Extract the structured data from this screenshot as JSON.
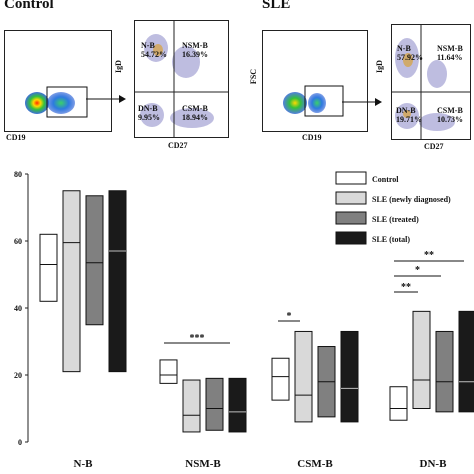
{
  "flow": {
    "control": {
      "title": "Control",
      "scatter_xlabel": "CD19",
      "quad_xlabel": "CD27",
      "quad_ylabel": "IgD",
      "nb": {
        "name": "N-B",
        "pct": "54.72%"
      },
      "nsmb": {
        "name": "NSM-B",
        "pct": "16.39%"
      },
      "dnb": {
        "name": "DN-B",
        "pct": "9.95%"
      },
      "csmb": {
        "name": "CSM-B",
        "pct": "18.94%"
      }
    },
    "sle": {
      "title": "SLE",
      "scatter_xlabel": "CD19",
      "scatter_ylabel": "FSC",
      "quad_xlabel": "CD27",
      "quad_ylabel": "IgD",
      "nb": {
        "name": "N-B",
        "pct": "57.92%"
      },
      "nsmb": {
        "name": "NSM-B",
        "pct": "11.64%"
      },
      "dnb": {
        "name": "DN-B",
        "pct": "19.71%"
      },
      "csmb": {
        "name": "CSM-B",
        "pct": "10.73%"
      }
    }
  },
  "chart_data": {
    "type": "box",
    "categories": [
      "N-B",
      "NSM-B",
      "CSM-B",
      "DN-B"
    ],
    "ylim": [
      0,
      80
    ],
    "yticks": [
      "0",
      "20",
      "40",
      "60",
      "80"
    ],
    "series": [
      {
        "name": "Control",
        "color": "#ffffff",
        "boxes": [
          {
            "low": 42,
            "median": 53,
            "high": 62
          },
          {
            "low": 17.5,
            "median": 20,
            "high": 24.5
          },
          {
            "low": 12.5,
            "median": 19.5,
            "high": 25
          },
          {
            "low": 6.5,
            "median": 10,
            "high": 16.5
          }
        ]
      },
      {
        "name": "SLE (newly diagnosed)",
        "color": "#d9d9d9",
        "boxes": [
          {
            "low": 21,
            "median": 59.5,
            "high": 75
          },
          {
            "low": 3,
            "median": 8,
            "high": 18.5
          },
          {
            "low": 6,
            "median": 14,
            "high": 33
          },
          {
            "low": 10,
            "median": 18.5,
            "high": 39
          }
        ]
      },
      {
        "name": "SLE (treated)",
        "color": "#808080",
        "boxes": [
          {
            "low": 35,
            "median": 53.5,
            "high": 73.5
          },
          {
            "low": 3.5,
            "median": 10,
            "high": 19
          },
          {
            "low": 7.5,
            "median": 18,
            "high": 28.5
          },
          {
            "low": 9,
            "median": 18,
            "high": 33
          }
        ]
      },
      {
        "name": "SLE (total)",
        "color": "#1a1a1a",
        "boxes": [
          {
            "low": 21,
            "median": 57,
            "high": 75
          },
          {
            "low": 3,
            "median": 9,
            "high": 19
          },
          {
            "low": 6,
            "median": 16,
            "high": 33
          },
          {
            "low": 9,
            "median": 18,
            "high": 39
          }
        ]
      }
    ],
    "annotations": [
      {
        "text": "***",
        "category": "NSM-B"
      },
      {
        "text": "*",
        "category": "CSM-B"
      },
      {
        "text": "**",
        "category": "DN-B"
      },
      {
        "text": "*",
        "category": "DN-B"
      },
      {
        "text": "**",
        "category": "DN-B"
      }
    ],
    "legend_position": "top-right"
  }
}
